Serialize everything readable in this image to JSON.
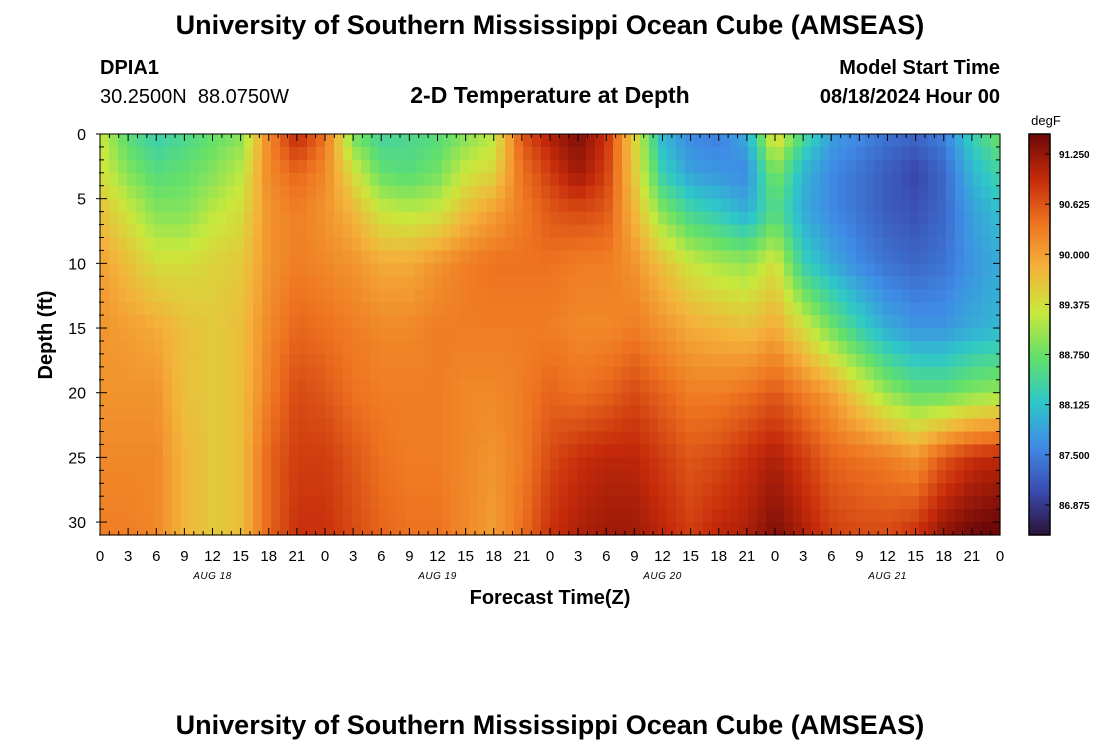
{
  "header": {
    "title": "University of Southern Mississippi Ocean Cube (AMSEAS)",
    "station_id": "DPIA1",
    "station_coords": "30.2500N  88.0750W",
    "subtitle": "2-D Temperature at Depth",
    "model_start_label": "Model Start Time",
    "model_start_value": "08/18/2024 Hour 00",
    "footer_title": "University of Southern Mississippi Ocean Cube (AMSEAS)"
  },
  "chart_data": {
    "type": "heatmap",
    "title": "2-D Temperature at Depth",
    "xlabel": "Forecast Time(Z)",
    "ylabel": "Depth (ft)",
    "x_hours_range": [
      0,
      96
    ],
    "ylim": [
      0,
      31
    ],
    "x_tick_step_hours": 3,
    "x_tick_labels": [
      "0",
      "3",
      "6",
      "9",
      "12",
      "15",
      "18",
      "21",
      "0",
      "3",
      "6",
      "9",
      "12",
      "15",
      "18",
      "21",
      "0",
      "3",
      "6",
      "9",
      "12",
      "15",
      "18",
      "21",
      "0",
      "3",
      "6",
      "9",
      "12",
      "15",
      "18",
      "21",
      "0"
    ],
    "day_labels": [
      {
        "label": "AUG 18",
        "hour": 12
      },
      {
        "label": "AUG 19",
        "hour": 36
      },
      {
        "label": "AUG 20",
        "hour": 60
      },
      {
        "label": "AUG 21",
        "hour": 84
      }
    ],
    "y_ticks": [
      0,
      5,
      10,
      15,
      20,
      25,
      30
    ],
    "y_tick_labels": [
      "0",
      "5",
      "10",
      "15",
      "20",
      "25",
      "30"
    ],
    "colorbar": {
      "unit": "degF",
      "range": [
        86.5,
        91.5
      ],
      "tick_values": [
        91.25,
        90.625,
        90.0,
        89.375,
        88.75,
        88.125,
        87.5,
        86.875
      ],
      "tick_labels": [
        "91.250",
        "90.625",
        "90.000",
        "89.375",
        "88.750",
        "88.125",
        "87.500",
        "86.875"
      ],
      "colormap": [
        "#2b1338",
        "#3a4cb0",
        "#3f8be6",
        "#2ec8c8",
        "#63e06a",
        "#c9e83c",
        "#f4b23a",
        "#ee7320",
        "#c52a0a",
        "#6e0808"
      ]
    },
    "depth_levels_ft": [
      0,
      3,
      6,
      10,
      15,
      20,
      25,
      31
    ],
    "time_hours": [
      0,
      3,
      6,
      9,
      12,
      15,
      18,
      21,
      24,
      27,
      30,
      33,
      36,
      39,
      42,
      45,
      48,
      51,
      54,
      57,
      60,
      63,
      66,
      69,
      72,
      75,
      78,
      81,
      84,
      87,
      90,
      93,
      96
    ],
    "temperature_degF": [
      [
        89.3,
        89.4,
        89.7,
        90.0,
        90.1,
        90.1,
        90.2,
        90.3
      ],
      [
        88.6,
        88.9,
        89.3,
        89.7,
        90.0,
        90.1,
        90.2,
        90.3
      ],
      [
        88.3,
        88.6,
        88.9,
        89.4,
        89.9,
        90.1,
        90.2,
        90.2
      ],
      [
        88.5,
        88.7,
        88.9,
        89.4,
        89.7,
        89.7,
        89.8,
        89.8
      ],
      [
        88.7,
        88.9,
        89.2,
        89.5,
        89.6,
        89.6,
        89.6,
        89.6
      ],
      [
        88.9,
        89.2,
        89.4,
        89.6,
        89.7,
        89.7,
        89.7,
        89.7
      ],
      [
        90.2,
        90.2,
        90.1,
        90.1,
        90.2,
        90.3,
        90.5,
        90.5
      ],
      [
        91.0,
        90.5,
        90.3,
        90.3,
        90.5,
        90.7,
        90.8,
        90.9
      ],
      [
        90.4,
        90.2,
        90.1,
        90.2,
        90.4,
        90.6,
        90.8,
        90.9
      ],
      [
        88.8,
        89.4,
        89.8,
        90.1,
        90.3,
        90.4,
        90.6,
        90.7
      ],
      [
        88.4,
        88.7,
        89.3,
        89.9,
        90.2,
        90.3,
        90.4,
        90.5
      ],
      [
        88.5,
        88.6,
        89.2,
        89.9,
        90.2,
        90.3,
        90.3,
        90.4
      ],
      [
        88.6,
        88.8,
        89.3,
        90.1,
        90.3,
        90.3,
        90.3,
        90.4
      ],
      [
        88.9,
        89.3,
        89.7,
        90.3,
        90.3,
        90.2,
        90.2,
        90.2
      ],
      [
        89.2,
        89.5,
        90.0,
        90.4,
        90.3,
        90.2,
        90.1,
        90.0
      ],
      [
        90.6,
        90.4,
        90.3,
        90.4,
        90.3,
        90.3,
        90.3,
        90.4
      ],
      [
        91.1,
        90.8,
        90.6,
        90.4,
        90.3,
        90.5,
        90.7,
        90.9
      ],
      [
        91.4,
        91.2,
        90.7,
        90.3,
        90.2,
        90.4,
        90.9,
        91.1
      ],
      [
        90.9,
        90.8,
        90.6,
        90.3,
        90.2,
        90.5,
        91.0,
        91.2
      ],
      [
        89.5,
        89.6,
        89.8,
        90.1,
        90.3,
        90.7,
        91.0,
        91.2
      ],
      [
        88.0,
        88.3,
        88.9,
        89.7,
        90.1,
        90.5,
        90.8,
        91.0
      ],
      [
        87.6,
        87.8,
        88.4,
        89.3,
        89.9,
        90.3,
        90.6,
        90.8
      ],
      [
        87.5,
        87.7,
        88.2,
        89.1,
        89.8,
        90.3,
        90.7,
        91.0
      ],
      [
        87.9,
        87.6,
        87.9,
        89.0,
        89.7,
        90.4,
        90.9,
        91.1
      ],
      [
        89.6,
        88.9,
        88.6,
        89.4,
        89.9,
        90.6,
        91.1,
        91.4
      ],
      [
        88.5,
        88.0,
        87.9,
        88.3,
        89.4,
        90.3,
        90.8,
        91.1
      ],
      [
        87.8,
        87.6,
        87.6,
        87.9,
        88.8,
        90.0,
        90.5,
        90.8
      ],
      [
        87.6,
        87.4,
        87.4,
        87.6,
        88.3,
        89.5,
        90.4,
        90.7
      ],
      [
        87.4,
        87.2,
        87.2,
        87.4,
        87.9,
        89.0,
        90.3,
        90.7
      ],
      [
        87.3,
        87.0,
        87.1,
        87.3,
        87.7,
        88.7,
        90.1,
        90.9
      ],
      [
        87.5,
        87.3,
        87.3,
        87.4,
        87.7,
        88.7,
        90.6,
        91.3
      ],
      [
        88.3,
        88.0,
        87.8,
        87.7,
        87.9,
        88.9,
        90.9,
        91.5
      ],
      [
        88.8,
        88.4,
        88.1,
        87.9,
        88.0,
        89.0,
        91.0,
        91.6
      ]
    ]
  }
}
